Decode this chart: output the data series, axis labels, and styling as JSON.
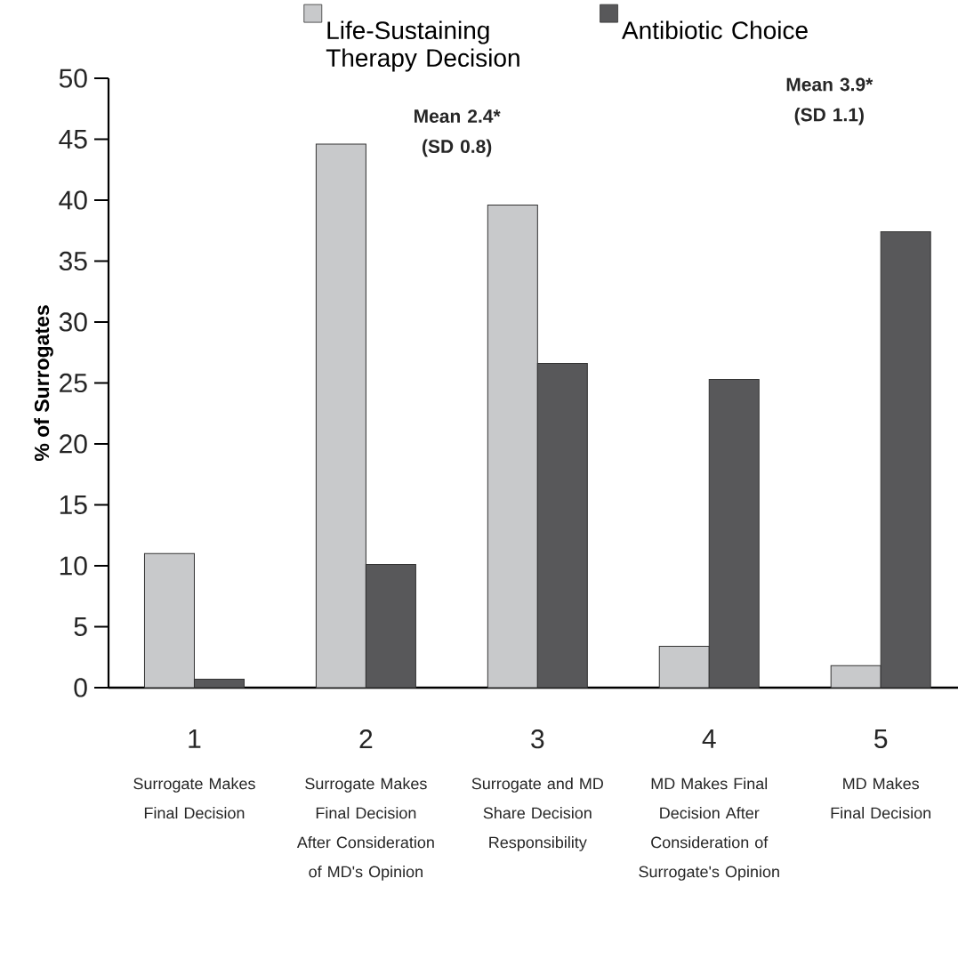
{
  "chart_data": {
    "type": "bar",
    "ylabel": "% of Surrogates",
    "categories": [
      "1",
      "2",
      "3",
      "4",
      "5"
    ],
    "series": [
      {
        "name": "Life-Sustaining Therapy Decision",
        "color": "#c8c9cb",
        "values": [
          11,
          44.6,
          39.6,
          3.4,
          1.8
        ]
      },
      {
        "name": "Antibiotic Choice",
        "color": "#58585a",
        "values": [
          0.7,
          10.1,
          26.6,
          25.3,
          37.4
        ]
      }
    ],
    "ylim": [
      0,
      50
    ],
    "yticks": [
      0,
      5,
      10,
      15,
      20,
      25,
      30,
      35,
      40,
      45,
      50
    ],
    "legend": "top",
    "annotations": [
      "Surrogate Makes Final Decision",
      "Surrogate Makes Final Decision After Consideration of MD's Opinion",
      "Surrogate and MD Share Decision Responsibility",
      "MD Makes Final Decision After Consideration of Surrogate's Opinion",
      "MD Makes Final Decision",
      "Mean 2.4* (SD 0.8)",
      "Mean 3.9* (SD 1.1)"
    ]
  }
}
